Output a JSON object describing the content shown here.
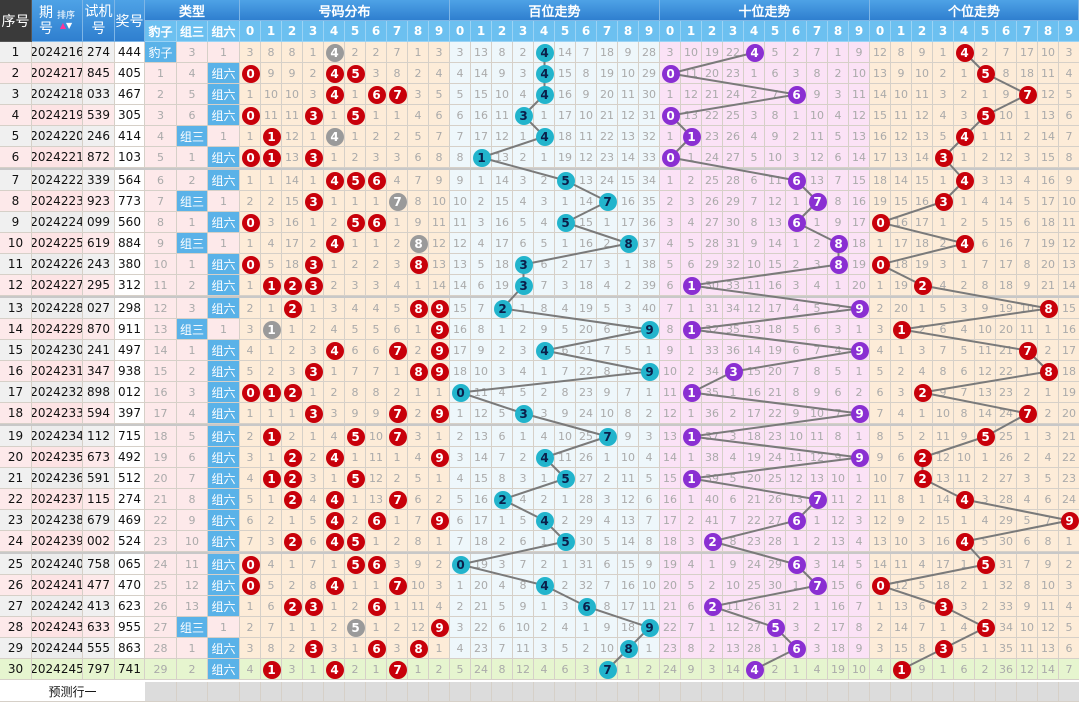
{
  "headers": {
    "seq": "序号",
    "issue_top": "期",
    "issue_bottom": "号",
    "sort": "排序",
    "test_top": "试机",
    "test_bottom": "号",
    "draw": "奖号",
    "type": "类型",
    "type_cols": [
      "豹子",
      "组三",
      "组六"
    ],
    "sections": [
      "号码分布",
      "百位走势",
      "十位走势",
      "个位走势"
    ],
    "digits": [
      "0",
      "1",
      "2",
      "3",
      "4",
      "5",
      "6",
      "7",
      "8",
      "9"
    ]
  },
  "predict_label": "预测行一",
  "type_labels": {
    "triple": "豹子",
    "pair": "组三",
    "six": "组六"
  },
  "rows": [
    {
      "seq": "1",
      "issue": "2024216",
      "test": "274",
      "draw": "444"
    },
    {
      "seq": "2",
      "issue": "2024217",
      "test": "845",
      "draw": "405"
    },
    {
      "seq": "3",
      "issue": "2024218",
      "test": "033",
      "draw": "467"
    },
    {
      "seq": "4",
      "issue": "2024219",
      "test": "539",
      "draw": "305"
    },
    {
      "seq": "5",
      "issue": "2024220",
      "test": "246",
      "draw": "414"
    },
    {
      "seq": "6",
      "issue": "2024221",
      "test": "872",
      "draw": "103"
    },
    {
      "seq": "7",
      "issue": "2024222",
      "test": "339",
      "draw": "564"
    },
    {
      "seq": "8",
      "issue": "2024223",
      "test": "923",
      "draw": "773"
    },
    {
      "seq": "9",
      "issue": "2024224",
      "test": "099",
      "draw": "560"
    },
    {
      "seq": "10",
      "issue": "2024225",
      "test": "619",
      "draw": "884"
    },
    {
      "seq": "11",
      "issue": "2024226",
      "test": "243",
      "draw": "380"
    },
    {
      "seq": "12",
      "issue": "2024227",
      "test": "295",
      "draw": "312"
    },
    {
      "seq": "13",
      "issue": "2024228",
      "test": "027",
      "draw": "298"
    },
    {
      "seq": "14",
      "issue": "2024229",
      "test": "870",
      "draw": "911"
    },
    {
      "seq": "15",
      "issue": "2024230",
      "test": "241",
      "draw": "497"
    },
    {
      "seq": "16",
      "issue": "2024231",
      "test": "347",
      "draw": "938"
    },
    {
      "seq": "17",
      "issue": "2024232",
      "test": "898",
      "draw": "012"
    },
    {
      "seq": "18",
      "issue": "2024233",
      "test": "594",
      "draw": "397"
    },
    {
      "seq": "19",
      "issue": "2024234",
      "test": "112",
      "draw": "715"
    },
    {
      "seq": "20",
      "issue": "2024235",
      "test": "673",
      "draw": "492"
    },
    {
      "seq": "21",
      "issue": "2024236",
      "test": "591",
      "draw": "512"
    },
    {
      "seq": "22",
      "issue": "2024237",
      "test": "115",
      "draw": "274"
    },
    {
      "seq": "23",
      "issue": "2024238",
      "test": "679",
      "draw": "469"
    },
    {
      "seq": "24",
      "issue": "2024239",
      "test": "002",
      "draw": "524"
    },
    {
      "seq": "25",
      "issue": "2024240",
      "test": "758",
      "draw": "065"
    },
    {
      "seq": "26",
      "issue": "2024241",
      "test": "477",
      "draw": "470"
    },
    {
      "seq": "27",
      "issue": "2024242",
      "test": "413",
      "draw": "623"
    },
    {
      "seq": "28",
      "issue": "2024243",
      "test": "633",
      "draw": "955"
    },
    {
      "seq": "29",
      "issue": "2024244",
      "test": "555",
      "draw": "863"
    },
    {
      "seq": "30",
      "issue": "2024245",
      "test": "797",
      "draw": "741"
    }
  ],
  "first_row_omissions": {
    "type": [
      0,
      3,
      1
    ],
    "distribution": [
      3,
      8,
      8,
      1,
      0,
      2,
      2,
      7,
      1,
      3
    ],
    "hundreds": [
      3,
      13,
      8,
      2,
      0,
      14,
      7,
      18,
      9,
      28
    ],
    "tens": [
      3,
      10,
      19,
      22,
      0,
      5,
      2,
      7,
      1,
      9
    ],
    "units": [
      12,
      8,
      9,
      1,
      0,
      2,
      7,
      17,
      10,
      3
    ]
  },
  "colors": {
    "header_blue": "#2f7fcf",
    "subheader_blue": "#6cc0f0",
    "hit_blue": "#5ab2e8",
    "dist_bg": "#fdecd8",
    "hundreds_bg": "#eef7fb",
    "tens_bg": "#fbe2f6",
    "units_bg": "#fdecd8",
    "red_ball": "#c8000a",
    "repeat_ball": "#9a9a9a",
    "teal_ball": "#22b4cc",
    "purple_ball": "#8a2fd2",
    "latest_row_bg": "#e6f5cf",
    "odd_row_bg": "#f0f0f0",
    "even_row_bg": "#fde9ea",
    "line": "#7a7a7a"
  }
}
